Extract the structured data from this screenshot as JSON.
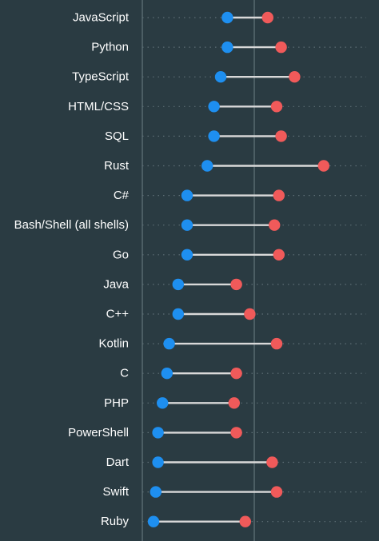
{
  "chart_data": {
    "type": "dumbbell",
    "title": "",
    "xlabel": "",
    "ylabel": "",
    "grid": true,
    "xlim": [
      0,
      100
    ],
    "colors": {
      "background": "#2a3b42",
      "start": "#1e8ff0",
      "end": "#f05a5a",
      "connector": "#d9d9d9",
      "gridline": "#6f8086",
      "row_guide": "#5d6e75",
      "label": "#ffffff"
    },
    "categories": [
      "JavaScript",
      "Python",
      "TypeScript",
      "HTML/CSS",
      "SQL",
      "Rust",
      "C#",
      "Bash/Shell (all shells)",
      "Go",
      "Java",
      "C++",
      "Kotlin",
      "C",
      "PHP",
      "PowerShell",
      "Dart",
      "Swift",
      "Ruby"
    ],
    "series": [
      {
        "values": [
          38,
          38,
          35,
          32,
          32,
          29,
          20,
          20,
          20,
          16,
          16,
          12,
          11,
          9,
          7,
          7,
          6,
          5
        ]
      },
      {
        "values": [
          56,
          62,
          68,
          60,
          62,
          81,
          61,
          59,
          61,
          42,
          48,
          60,
          42,
          41,
          42,
          58,
          60,
          46
        ]
      }
    ]
  }
}
